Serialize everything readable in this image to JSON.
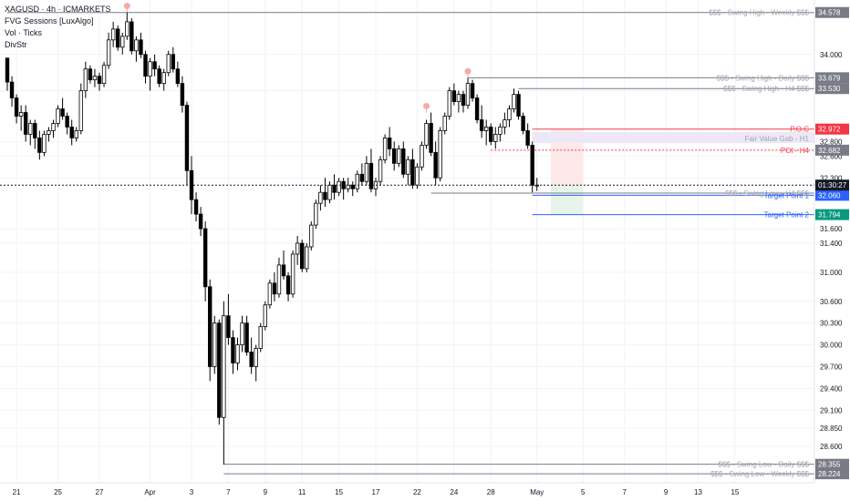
{
  "header": {
    "symbol_line": "XAGUSD · 4h · ICMARKETS",
    "indicators": [
      "FVG Sessions [LuxAlgo]",
      "Vol · Ticks",
      "DivStr"
    ]
  },
  "colors": {
    "candle": "#000000",
    "grid": "#f0f3fa",
    "price_line": "#131722",
    "swing_level": "#787b86",
    "poc": "#f23645",
    "fvg_zone": "#ede7f6",
    "target": "#2962ff",
    "target2_badge": "#089981",
    "projection_green": "#e6f4ea",
    "projection_red": "#fde8ea",
    "swing_marker": "#f7a9a8"
  },
  "chart_data": {
    "type": "candlestick",
    "ylim": [
      28.1,
      34.75
    ],
    "y_ticks": [
      34.0,
      33.5,
      32.8,
      32.6,
      32.3,
      31.6,
      31.4,
      31.0,
      30.6,
      30.3,
      30.0,
      29.7,
      29.4,
      29.1,
      28.85,
      28.6
    ],
    "y_tick_labels": [
      "34.000",
      "33.500",
      "32.800",
      "32.600",
      "32.300",
      "31.600",
      "31.400",
      "31.000",
      "30.600",
      "30.300",
      "30.000",
      "29.700",
      "29.400",
      "29.100",
      "28.850",
      "28.600"
    ],
    "x_labels": [
      "21",
      "25",
      "27",
      "Apr",
      "3",
      "7",
      "9",
      "11",
      "15",
      "17",
      "22",
      "24",
      "28",
      "May",
      "5",
      "7",
      "9",
      "13",
      "15"
    ],
    "x_label_bar_index": [
      2,
      11,
      20,
      31,
      40,
      48,
      56,
      64,
      72,
      80,
      89,
      97,
      105,
      115,
      125,
      134,
      143,
      150,
      158
    ],
    "ohlc": [
      [
        33.95,
        33.95,
        33.5,
        33.62
      ],
      [
        33.62,
        33.7,
        33.28,
        33.4
      ],
      [
        33.4,
        33.45,
        33.05,
        33.15
      ],
      [
        33.15,
        33.3,
        32.95,
        33.2
      ],
      [
        33.2,
        33.3,
        32.8,
        32.9
      ],
      [
        32.9,
        33.1,
        32.75,
        33.05
      ],
      [
        33.05,
        33.1,
        32.7,
        32.85
      ],
      [
        32.85,
        32.95,
        32.55,
        32.65
      ],
      [
        32.65,
        32.95,
        32.6,
        32.9
      ],
      [
        32.9,
        33.0,
        32.8,
        32.95
      ],
      [
        32.95,
        33.1,
        32.85,
        33.05
      ],
      [
        33.05,
        33.3,
        33.0,
        33.25
      ],
      [
        33.25,
        33.4,
        33.1,
        33.15
      ],
      [
        33.15,
        33.2,
        32.9,
        33.0
      ],
      [
        33.0,
        33.1,
        32.75,
        32.85
      ],
      [
        32.85,
        33.0,
        32.8,
        32.95
      ],
      [
        32.95,
        33.6,
        32.9,
        33.5
      ],
      [
        33.5,
        33.9,
        33.4,
        33.8
      ],
      [
        33.8,
        33.85,
        33.6,
        33.65
      ],
      [
        33.65,
        33.8,
        33.55,
        33.7
      ],
      [
        33.7,
        33.75,
        33.5,
        33.6
      ],
      [
        33.6,
        33.9,
        33.55,
        33.85
      ],
      [
        33.85,
        34.3,
        33.8,
        34.2
      ],
      [
        34.2,
        34.45,
        34.1,
        34.35
      ],
      [
        34.35,
        34.4,
        34.05,
        34.1
      ],
      [
        34.1,
        34.3,
        34.0,
        34.25
      ],
      [
        34.25,
        34.58,
        34.2,
        34.45
      ],
      [
        34.45,
        34.5,
        34.0,
        34.05
      ],
      [
        34.05,
        34.25,
        33.9,
        34.2
      ],
      [
        34.2,
        34.3,
        33.95,
        34.0
      ],
      [
        34.0,
        34.05,
        33.6,
        33.7
      ],
      [
        33.7,
        33.95,
        33.5,
        33.9
      ],
      [
        33.9,
        34.0,
        33.7,
        33.8
      ],
      [
        33.8,
        33.85,
        33.55,
        33.6
      ],
      [
        33.6,
        33.8,
        33.5,
        33.75
      ],
      [
        33.75,
        34.05,
        33.7,
        34.0
      ],
      [
        34.0,
        34.1,
        33.75,
        33.8
      ],
      [
        33.8,
        33.9,
        33.55,
        33.6
      ],
      [
        33.6,
        33.7,
        33.2,
        33.3
      ],
      [
        33.3,
        33.35,
        32.2,
        32.4
      ],
      [
        32.4,
        32.6,
        31.8,
        32.0
      ],
      [
        32.0,
        32.1,
        31.7,
        31.8
      ],
      [
        31.8,
        31.9,
        31.5,
        31.6
      ],
      [
        31.6,
        31.7,
        30.6,
        30.8
      ],
      [
        30.8,
        30.9,
        29.5,
        29.7
      ],
      [
        29.7,
        30.4,
        29.6,
        30.3
      ],
      [
        30.3,
        30.35,
        28.9,
        29.0
      ],
      [
        29.0,
        30.6,
        28.35,
        30.4
      ],
      [
        30.4,
        30.7,
        30.0,
        30.1
      ],
      [
        30.1,
        30.2,
        29.6,
        29.75
      ],
      [
        29.75,
        30.1,
        29.65,
        30.0
      ],
      [
        30.0,
        30.4,
        29.9,
        30.3
      ],
      [
        30.3,
        30.4,
        29.85,
        29.9
      ],
      [
        29.9,
        30.1,
        29.6,
        29.7
      ],
      [
        29.7,
        30.0,
        29.5,
        29.95
      ],
      [
        29.95,
        30.3,
        29.9,
        30.25
      ],
      [
        30.25,
        30.6,
        30.2,
        30.55
      ],
      [
        30.55,
        30.9,
        30.5,
        30.85
      ],
      [
        30.85,
        31.0,
        30.6,
        30.7
      ],
      [
        30.7,
        31.2,
        30.65,
        31.1
      ],
      [
        31.1,
        31.3,
        30.9,
        30.95
      ],
      [
        30.95,
        31.0,
        30.6,
        30.7
      ],
      [
        30.7,
        31.3,
        30.65,
        31.25
      ],
      [
        31.25,
        31.5,
        31.1,
        31.4
      ],
      [
        31.4,
        31.45,
        31.0,
        31.05
      ],
      [
        31.05,
        31.4,
        31.0,
        31.35
      ],
      [
        31.35,
        31.7,
        31.3,
        31.65
      ],
      [
        31.65,
        32.0,
        31.6,
        31.95
      ],
      [
        31.95,
        32.2,
        31.85,
        32.1
      ],
      [
        32.1,
        32.3,
        31.9,
        32.0
      ],
      [
        32.0,
        32.25,
        31.95,
        32.2
      ],
      [
        32.2,
        32.35,
        32.0,
        32.1
      ],
      [
        32.1,
        32.3,
        32.05,
        32.25
      ],
      [
        32.25,
        32.3,
        32.0,
        32.15
      ],
      [
        32.15,
        32.3,
        32.1,
        32.2
      ],
      [
        32.2,
        32.25,
        32.05,
        32.15
      ],
      [
        32.15,
        32.4,
        32.1,
        32.35
      ],
      [
        32.35,
        32.5,
        32.2,
        32.25
      ],
      [
        32.25,
        32.6,
        32.2,
        32.5
      ],
      [
        32.5,
        32.7,
        32.1,
        32.15
      ],
      [
        32.15,
        32.3,
        32.05,
        32.25
      ],
      [
        32.25,
        32.6,
        32.2,
        32.55
      ],
      [
        32.55,
        32.9,
        32.5,
        32.85
      ],
      [
        32.85,
        33.0,
        32.6,
        32.7
      ],
      [
        32.7,
        32.8,
        32.4,
        32.5
      ],
      [
        32.5,
        32.75,
        32.45,
        32.7
      ],
      [
        32.7,
        32.8,
        32.3,
        32.35
      ],
      [
        32.35,
        32.6,
        32.2,
        32.55
      ],
      [
        32.55,
        32.7,
        32.15,
        32.2
      ],
      [
        32.2,
        32.5,
        32.15,
        32.45
      ],
      [
        32.45,
        32.8,
        32.4,
        32.75
      ],
      [
        32.75,
        33.1,
        32.7,
        33.05
      ],
      [
        33.05,
        33.2,
        32.6,
        32.65
      ],
      [
        32.65,
        32.8,
        32.2,
        32.3
      ],
      [
        32.3,
        33.0,
        32.25,
        32.95
      ],
      [
        32.95,
        33.2,
        32.9,
        33.15
      ],
      [
        33.15,
        33.55,
        33.1,
        33.5
      ],
      [
        33.5,
        33.6,
        33.3,
        33.35
      ],
      [
        33.35,
        33.5,
        33.2,
        33.45
      ],
      [
        33.45,
        33.5,
        33.2,
        33.3
      ],
      [
        33.3,
        33.68,
        33.25,
        33.6
      ],
      [
        33.6,
        33.65,
        33.35,
        33.4
      ],
      [
        33.4,
        33.45,
        33.05,
        33.1
      ],
      [
        33.1,
        33.3,
        32.85,
        32.95
      ],
      [
        32.95,
        33.1,
        32.75,
        33.0
      ],
      [
        33.0,
        33.05,
        32.75,
        32.8
      ],
      [
        32.8,
        33.0,
        32.7,
        32.9
      ],
      [
        32.9,
        33.05,
        32.8,
        33.0
      ],
      [
        33.0,
        33.2,
        32.9,
        33.1
      ],
      [
        33.1,
        33.3,
        33.0,
        33.25
      ],
      [
        33.25,
        33.53,
        33.2,
        33.45
      ],
      [
        33.45,
        33.5,
        33.1,
        33.15
      ],
      [
        33.15,
        33.2,
        32.9,
        32.95
      ],
      [
        32.95,
        33.05,
        32.7,
        32.75
      ],
      [
        32.75,
        32.8,
        32.1,
        32.2
      ],
      [
        32.2,
        32.3,
        32.12,
        32.2
      ]
    ],
    "swing_markers": [
      {
        "bar": 26,
        "price": 34.58
      },
      {
        "bar": 100,
        "price": 33.68
      },
      {
        "bar": 91,
        "price": 33.2
      }
    ]
  },
  "levels": [
    {
      "id": "swing-high-weekly",
      "label": "$$$ - Swing High - Weekly $$$",
      "price": 34.578,
      "price_label": "34.578",
      "color": "#787b86",
      "style": "solid",
      "start_bar": 0
    },
    {
      "id": "swing-high-daily",
      "label": "$$$ - Swing High - Daily $$$",
      "price": 33.679,
      "price_label": "33.679",
      "color": "#787b86",
      "style": "solid",
      "start_bar": 100
    },
    {
      "id": "swing-high-h4",
      "label": "$$$ - Swing High - H4 $$$",
      "price": 33.53,
      "price_label": "33.530",
      "color": "#787b86",
      "style": "solid",
      "start_bar": 111
    },
    {
      "id": "poc",
      "label": "P.O.C",
      "price": 32.972,
      "price_label": "32.972",
      "color": "#f23645",
      "style": "solid",
      "start_bar": 114
    },
    {
      "id": "fvg-h1",
      "label": "Fair Value Gab - H1",
      "price": 32.84,
      "price_label": "",
      "color": "#787b86",
      "style": "none",
      "start_bar": 114
    },
    {
      "id": "poi-h4",
      "label": "POI - H4",
      "price": 32.682,
      "price_label": "32.682",
      "color": "#f23645",
      "style": "dotted",
      "start_bar": 105
    },
    {
      "id": "swing-low-h4",
      "label": "$$$ - Swing Low - H4 $$$",
      "price": 32.09,
      "price_label": "",
      "color": "#787b86",
      "style": "solid",
      "start_bar": 92
    },
    {
      "id": "target-1",
      "label": "Target Point 1",
      "price": 32.06,
      "price_label": "32.060",
      "color": "#2962ff",
      "style": "solid",
      "start_bar": 114
    },
    {
      "id": "target-2",
      "label": "Target Point 2",
      "price": 31.794,
      "price_label": "31.794",
      "color": "#2962ff",
      "style": "solid",
      "start_bar": 114
    },
    {
      "id": "swing-low-daily",
      "label": "$$$ - Swing Low - Daily $$$",
      "price": 28.355,
      "price_label": "28.355",
      "color": "#787b86",
      "style": "solid",
      "start_bar": 47
    },
    {
      "id": "swing-low-weekly",
      "label": "$$$ - Swing Low - Weekly $$$",
      "price": 28.224,
      "price_label": "28.224",
      "color": "#787b86",
      "style": "solid",
      "start_bar": 47
    }
  ],
  "current_price": {
    "price": 32.2,
    "countdown": "01:30:27"
  },
  "fvg_zone": {
    "top": 32.93,
    "bottom": 32.78,
    "start_bar": 114
  },
  "projection": {
    "start_bar": 118,
    "end_bar": 125,
    "entry": 32.2,
    "stop": 32.97,
    "target": 31.794
  }
}
